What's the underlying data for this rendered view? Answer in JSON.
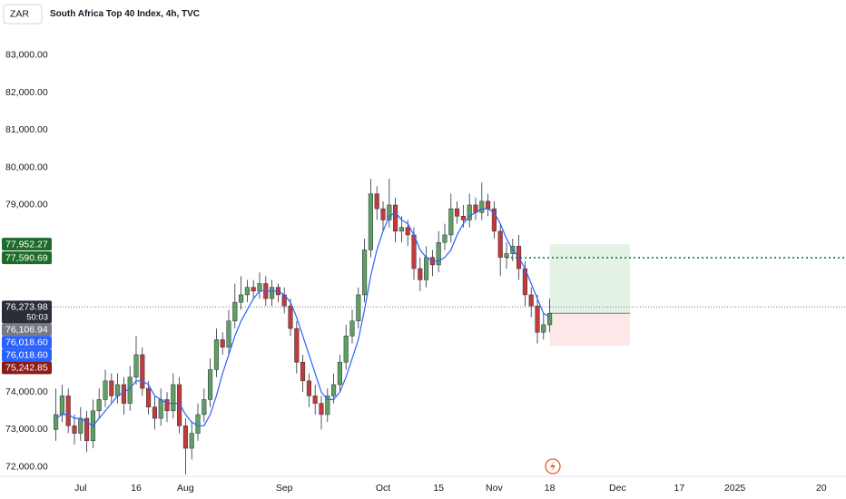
{
  "chart_data": {
    "type": "candlestick",
    "currency": "ZAR",
    "title": "South Africa Top 40 Index, 4h, TVC",
    "up_color": "#5e9f62",
    "down_color": "#c43a3a",
    "ma_color": "#2962ff",
    "xlim": [
      -2,
      128
    ],
    "ylim": [
      71750,
      83750
    ],
    "xticks": [
      {
        "value": 4,
        "label": "Jul"
      },
      {
        "value": 13,
        "label": "16"
      },
      {
        "value": 21,
        "label": "Aug"
      },
      {
        "value": 37,
        "label": "Sep"
      },
      {
        "value": 53,
        "label": "Oct"
      },
      {
        "value": 62,
        "label": "15"
      },
      {
        "value": 71,
        "label": "Nov"
      },
      {
        "value": 80,
        "label": "18"
      },
      {
        "value": 91,
        "label": "Dec"
      },
      {
        "value": 101,
        "label": "17"
      },
      {
        "value": 110,
        "label": "2025"
      },
      {
        "value": 124,
        "label": "20"
      }
    ],
    "yticks": [
      {
        "value": 72000,
        "label": "72,000.00"
      },
      {
        "value": 73000,
        "label": "73,000.00"
      },
      {
        "value": 74000,
        "label": "74,000.00"
      },
      {
        "value": 79000,
        "label": "79,000.00"
      },
      {
        "value": 80000,
        "label": "80,000.00"
      },
      {
        "value": 81000,
        "label": "81,000.00"
      },
      {
        "value": 82000,
        "label": "82,000.00"
      },
      {
        "value": 83000,
        "label": "83,000.00"
      }
    ],
    "open": [
      73000,
      73400,
      73900,
      73100,
      72900,
      73300,
      72700,
      73500,
      73800,
      74300,
      73900,
      74200,
      73700,
      74400,
      75000,
      74100,
      73600,
      73300,
      73800,
      73500,
      74200,
      73100,
      72500,
      72900,
      73400,
      73800,
      74600,
      75400,
      75200,
      75900,
      76400,
      76600,
      76800,
      76700,
      76900,
      76500,
      76800,
      76600,
      76300,
      75700,
      74800,
      74300,
      73900,
      73700,
      73400,
      73900,
      74200,
      74800,
      75500,
      75900,
      76600,
      77800,
      79300,
      78900,
      78600,
      79000,
      78300,
      78400,
      78200,
      77300,
      77000,
      77600,
      77400,
      78000,
      78200,
      78900,
      78700,
      78600,
      79000,
      78800,
      79100,
      78900,
      78300,
      77600,
      77700,
      77900,
      77300,
      76600,
      76300,
      75600,
      75800
    ],
    "high": [
      74100,
      74200,
      74100,
      73400,
      73600,
      73500,
      73800,
      74100,
      74600,
      74500,
      74500,
      74400,
      74700,
      75500,
      75200,
      74300,
      73900,
      74100,
      74000,
      74500,
      74400,
      73300,
      73200,
      73700,
      74100,
      74900,
      75700,
      75600,
      76200,
      76900,
      77100,
      77000,
      77000,
      77200,
      77100,
      77000,
      76900,
      76800,
      76500,
      75900,
      75000,
      74500,
      74200,
      73900,
      74100,
      74500,
      75000,
      75800,
      76200,
      76800,
      78100,
      79700,
      79500,
      79100,
      79700,
      79200,
      78700,
      78600,
      78400,
      77600,
      77900,
      77800,
      78300,
      78500,
      79300,
      79100,
      79000,
      79300,
      79200,
      79600,
      79300,
      79100,
      78500,
      78000,
      78100,
      78200,
      77500,
      76800,
      76600,
      76100,
      76500
    ],
    "low": [
      72700,
      73200,
      72900,
      72600,
      72700,
      72400,
      72500,
      73300,
      73600,
      73700,
      73700,
      73400,
      73500,
      74200,
      73900,
      73400,
      73000,
      73100,
      73200,
      73300,
      72900,
      71800,
      72200,
      72700,
      73200,
      73600,
      74400,
      75000,
      75000,
      75700,
      76200,
      76400,
      76500,
      76500,
      76300,
      76300,
      76400,
      76100,
      75500,
      74500,
      74000,
      73600,
      73400,
      73000,
      73200,
      73700,
      74000,
      74600,
      75300,
      75700,
      76400,
      77600,
      78600,
      78300,
      78400,
      78000,
      78000,
      77900,
      77000,
      76700,
      76800,
      77100,
      77200,
      77800,
      78000,
      78500,
      78400,
      78400,
      78600,
      78600,
      78700,
      78100,
      77100,
      77300,
      77500,
      77000,
      76300,
      76000,
      75300,
      75400,
      75600
    ],
    "close": [
      73400,
      73900,
      73100,
      72900,
      73300,
      72700,
      73500,
      73800,
      74300,
      73900,
      74200,
      73700,
      74400,
      75000,
      74100,
      73600,
      73300,
      73800,
      73500,
      74200,
      73100,
      72500,
      72900,
      73400,
      73800,
      74600,
      75400,
      75200,
      75900,
      76400,
      76600,
      76800,
      76700,
      76900,
      76500,
      76800,
      76600,
      76300,
      75700,
      74800,
      74300,
      73900,
      73700,
      73400,
      73900,
      74200,
      74800,
      75500,
      75900,
      76600,
      77800,
      79300,
      78900,
      78600,
      79000,
      78300,
      78400,
      78200,
      77300,
      77000,
      77600,
      77400,
      78000,
      78200,
      78900,
      78700,
      78600,
      79000,
      78800,
      79100,
      78900,
      78300,
      77600,
      77700,
      77900,
      77300,
      76600,
      76300,
      75600,
      75800,
      76106.94
    ],
    "ma": [
      73300,
      73400,
      73400,
      73300,
      73300,
      73200,
      73100,
      73300,
      73500,
      73700,
      73900,
      74000,
      74100,
      74300,
      74300,
      74200,
      73900,
      73800,
      73700,
      73700,
      73700,
      73400,
      73200,
      73100,
      73100,
      73400,
      73900,
      74500,
      75000,
      75500,
      75900,
      76200,
      76500,
      76700,
      76700,
      76700,
      76700,
      76600,
      76400,
      76000,
      75500,
      75000,
      74500,
      74000,
      73800,
      73800,
      74000,
      74400,
      74900,
      75400,
      76200,
      77100,
      77800,
      78300,
      78700,
      78800,
      78600,
      78500,
      78200,
      77800,
      77600,
      77500,
      77500,
      77600,
      77800,
      78200,
      78500,
      78700,
      78800,
      78900,
      78900,
      78800,
      78500,
      78100,
      77800,
      77600,
      77300,
      76900,
      76500,
      76100,
      76018.6
    ],
    "position": {
      "x": [
        80,
        93
      ],
      "entry": 76106.94,
      "target": 77952.27,
      "stop": 75242.85
    },
    "lines": [
      {
        "value": 76273.98,
        "from": -2,
        "color": "#787b86"
      },
      {
        "value": 77590.69,
        "from": 73,
        "color": "#1b7a2b"
      }
    ],
    "badges": [
      {
        "value": 77952.27,
        "label": "77,952.27",
        "color": "#1e6b2a"
      },
      {
        "value": 77590.69,
        "label": "77,590.69",
        "color": "#1e6b2a"
      },
      {
        "value": 76273.98,
        "label": "76,273.98",
        "color": "#2a2e39",
        "sub": "50:03"
      },
      {
        "value": 76106.94,
        "label": "76,106.94",
        "color": "#787b86"
      },
      {
        "value": 76018.6,
        "label": "76,018.60",
        "color": "#2962ff"
      },
      {
        "value": 76018.6,
        "label": "76,018.60",
        "color": "#2962ff"
      },
      {
        "value": 75242.85,
        "label": "75,242.85",
        "color": "#8c1c1c"
      }
    ]
  }
}
